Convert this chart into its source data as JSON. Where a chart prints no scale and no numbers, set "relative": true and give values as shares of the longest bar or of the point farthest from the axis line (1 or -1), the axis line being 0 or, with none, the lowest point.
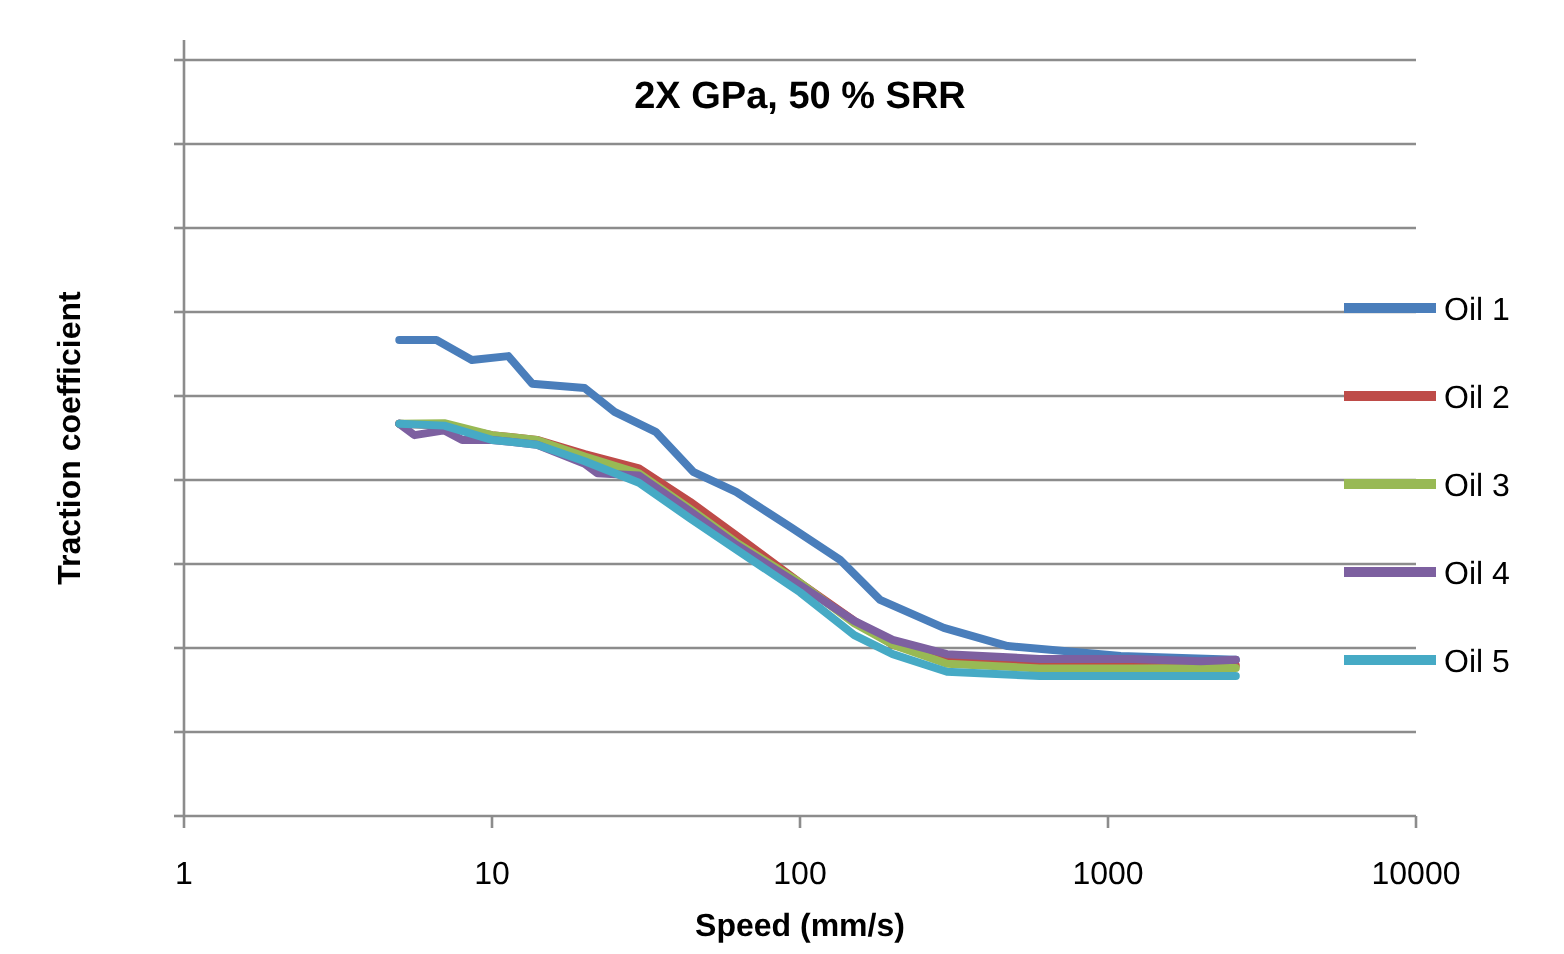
{
  "chart_data": {
    "type": "line",
    "title": "2X GPa, 50 % SRR",
    "xlabel": "Speed (mm/s)",
    "ylabel": "Traction coefficient",
    "log": "x",
    "relative": true,
    "xlim": [
      1,
      10000
    ],
    "xticks": [
      1,
      10,
      100,
      1000,
      10000
    ],
    "grid": "y",
    "legend": "right",
    "marker": "none",
    "line_style": "solid",
    "series": [
      {
        "name": "Oil 1",
        "color": "#4a7ebb",
        "x": [
          5,
          6.6,
          8.6,
          11.3,
          13.5,
          20,
          25,
          34,
          45,
          62,
          94,
          135,
          182,
          293,
          472,
          1100,
          2600
        ],
        "values": [
          1.0,
          1.0,
          0.958,
          0.966,
          0.908,
          0.899,
          0.849,
          0.807,
          0.723,
          0.681,
          0.605,
          0.538,
          0.454,
          0.395,
          0.357,
          0.336,
          0.328
        ]
      },
      {
        "name": "Oil 2",
        "color": "#be4b48",
        "x": [
          5,
          7,
          10,
          14,
          20,
          30,
          44,
          62,
          100,
          150,
          200,
          300,
          600,
          1200,
          2600
        ],
        "values": [
          0.824,
          0.82,
          0.8,
          0.79,
          0.76,
          0.73,
          0.66,
          0.59,
          0.49,
          0.41,
          0.36,
          0.325,
          0.316,
          0.316,
          0.316
        ]
      },
      {
        "name": "Oil 3",
        "color": "#98b954",
        "x": [
          5,
          7,
          10,
          14,
          20,
          30,
          44,
          62,
          100,
          150,
          200,
          300,
          600,
          1200,
          2600
        ],
        "values": [
          0.824,
          0.825,
          0.8,
          0.79,
          0.755,
          0.72,
          0.645,
          0.575,
          0.49,
          0.405,
          0.36,
          0.32,
          0.31,
          0.31,
          0.311
        ]
      },
      {
        "name": "Oil 4",
        "color": "#7d60a0",
        "x": [
          5,
          5.6,
          7,
          8,
          10,
          14,
          20,
          22,
          30,
          44,
          62,
          100,
          150,
          200,
          300,
          600,
          1200,
          2000,
          2600
        ],
        "values": [
          0.824,
          0.8,
          0.81,
          0.79,
          0.79,
          0.78,
          0.74,
          0.72,
          0.715,
          0.64,
          0.57,
          0.485,
          0.41,
          0.37,
          0.34,
          0.33,
          0.33,
          0.325,
          0.328
        ]
      },
      {
        "name": "Oil 5",
        "color": "#46aac5",
        "x": [
          5,
          7,
          10,
          14,
          20,
          30,
          44,
          62,
          100,
          150,
          200,
          300,
          600,
          1200,
          2600
        ],
        "values": [
          0.824,
          0.82,
          0.79,
          0.78,
          0.745,
          0.7,
          0.625,
          0.56,
          0.47,
          0.38,
          0.34,
          0.303,
          0.294,
          0.294,
          0.294
        ]
      }
    ]
  }
}
